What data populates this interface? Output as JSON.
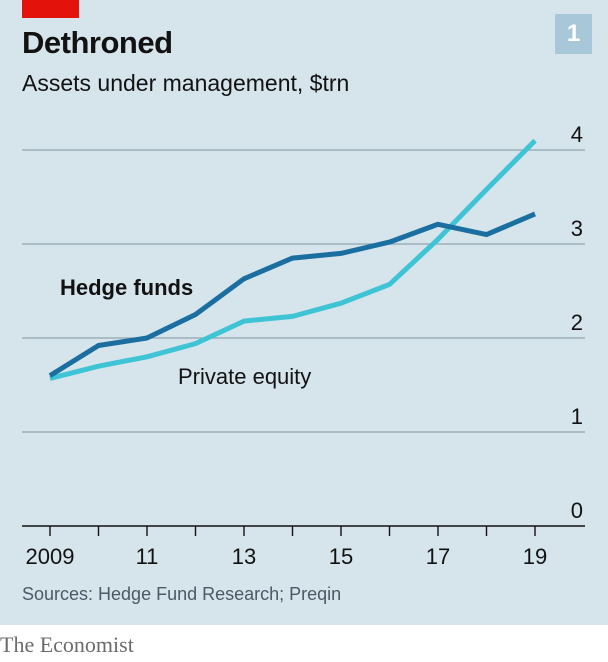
{
  "header": {
    "title": "Dethroned",
    "subtitle": "Assets under management, $trn",
    "chart_number": "1"
  },
  "footer": {
    "source": "Sources: Hedge Fund Research; Preqin",
    "brand": "The Economist"
  },
  "colors": {
    "background": "#d6e4ec",
    "accent_red": "#e3120b",
    "hedge_funds": "#1a6fa0",
    "private_equity": "#3ec4d4",
    "gridline": "#8fa3ae"
  },
  "chart_data": {
    "type": "line",
    "title": "Dethroned",
    "subtitle": "Assets under management, $trn",
    "x": [
      2009,
      2010,
      2011,
      2012,
      2013,
      2014,
      2015,
      2016,
      2017,
      2018,
      2019
    ],
    "x_tick_labels": [
      "2009",
      "11",
      "13",
      "15",
      "17",
      "19"
    ],
    "x_tick_values": [
      2009,
      2011,
      2013,
      2015,
      2017,
      2019
    ],
    "y_tick_labels": [
      "0",
      "1",
      "2",
      "3",
      "4"
    ],
    "y_tick_values": [
      0,
      1,
      2,
      3,
      4
    ],
    "xlim": [
      2009,
      2020
    ],
    "ylim": [
      0,
      4.3
    ],
    "grid": true,
    "series": [
      {
        "name": "Hedge funds",
        "values": [
          1.6,
          1.92,
          2.0,
          2.25,
          2.63,
          2.85,
          2.9,
          3.02,
          3.21,
          3.1,
          3.32
        ]
      },
      {
        "name": "Private equity",
        "values": [
          1.57,
          1.7,
          1.8,
          1.94,
          2.18,
          2.23,
          2.37,
          2.57,
          3.05,
          3.58,
          4.1
        ]
      }
    ]
  }
}
